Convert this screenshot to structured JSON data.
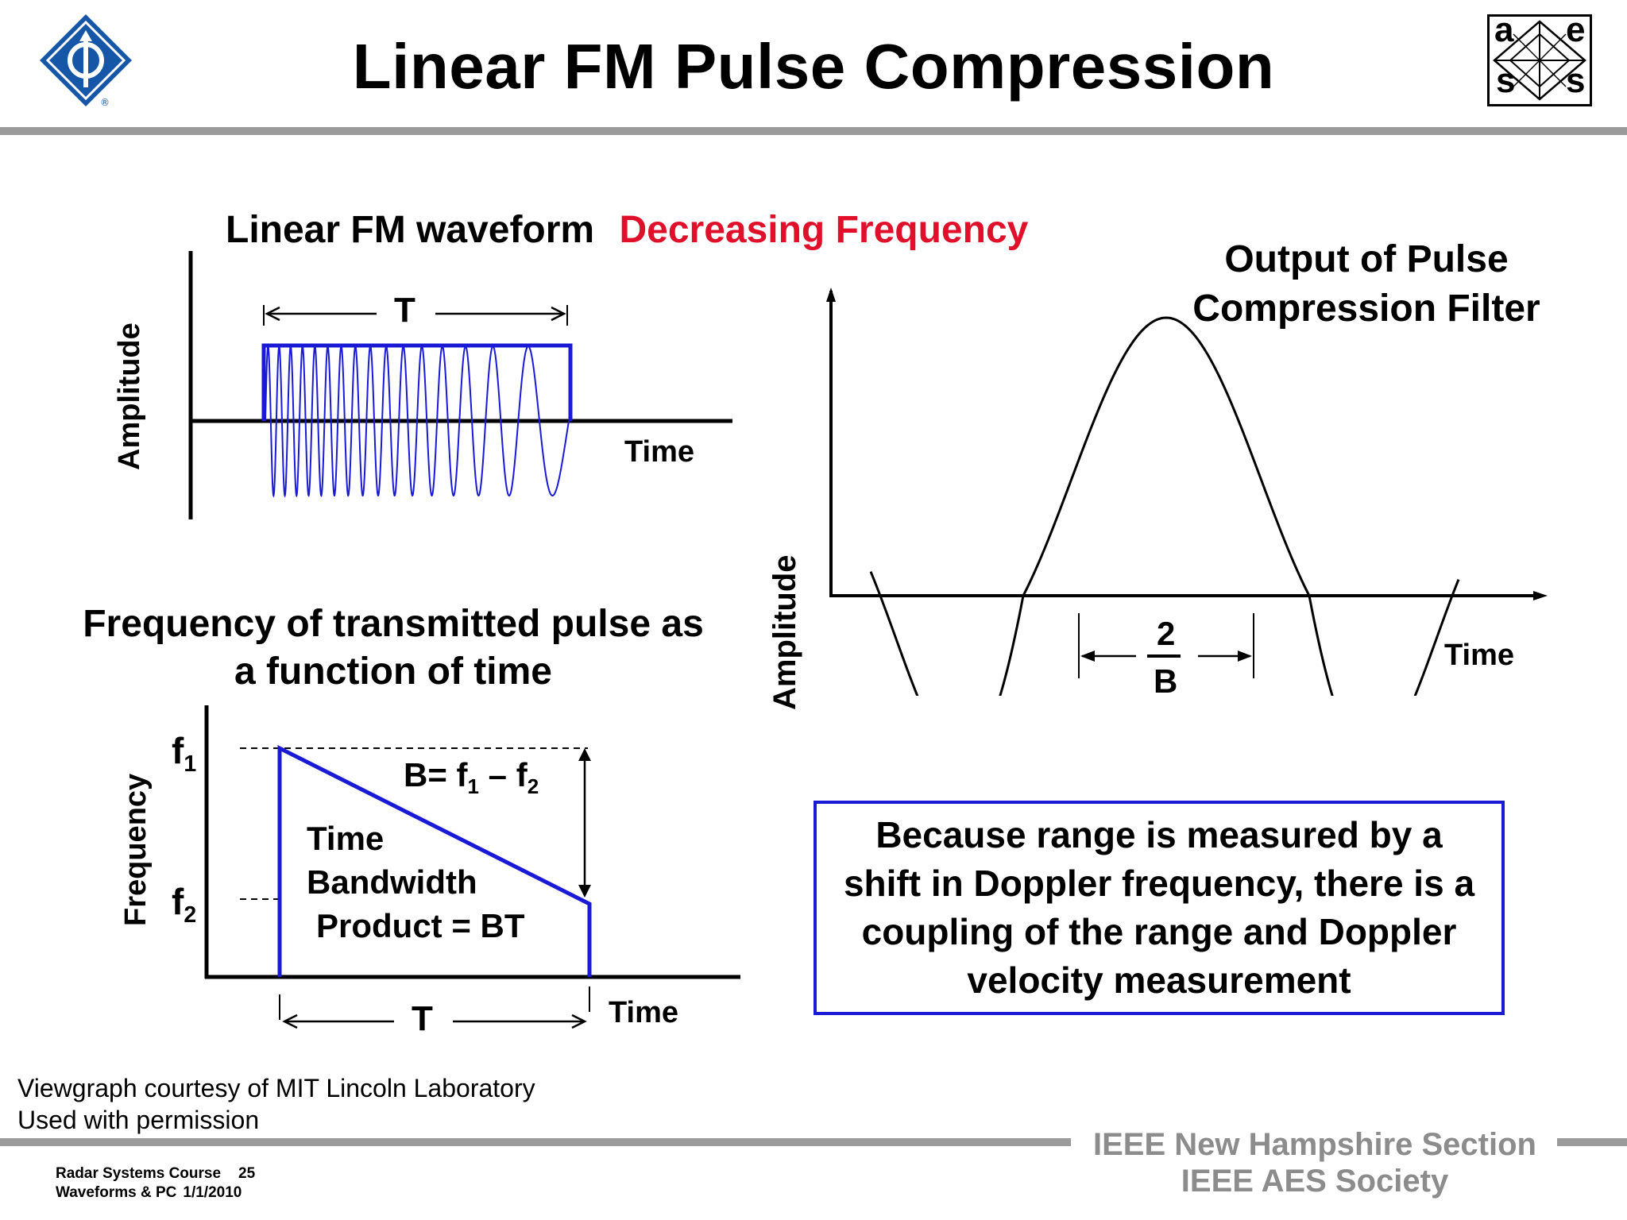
{
  "slide": {
    "title": "Linear FM Pulse Compression"
  },
  "waveform_panel": {
    "title": "Linear FM waveform",
    "title_highlight": "Decreasing Frequency",
    "y_label": "Amplitude",
    "x_label": "Time",
    "duration_label": "T"
  },
  "frequency_panel": {
    "title_line1": "Frequency of transmitted pulse as",
    "title_line2": "a function of time",
    "y_label": "Frequency",
    "x_label": "Time",
    "f1_main": "f",
    "f1_sub": "1",
    "f2_main": "f",
    "f2_sub": "2",
    "bandwidth_prefix": "B= f",
    "bandwidth_sub1": "1",
    "bandwidth_mid": " – f",
    "bandwidth_sub2": "2",
    "tbp_line1": "Time",
    "tbp_line2": "Bandwidth",
    "tbp_line3": "Product = BT",
    "duration_label": "T"
  },
  "output_panel": {
    "title_line1": "Output of Pulse",
    "title_line2": "Compression Filter",
    "y_label": "Amplitude",
    "x_label": "Time",
    "width_numerator": "2",
    "width_denominator": "B"
  },
  "note": "Because range is measured by a shift in Doppler frequency, there is a coupling of the range and Doppler velocity measurement",
  "credit_line1": "Viewgraph courtesy of MIT Lincoln Laboratory",
  "credit_line2": "Used with permission",
  "footer": {
    "course": "Radar Systems Course",
    "page": "25",
    "section": "Waveforms & PC",
    "date": "1/1/2010",
    "org_line1": "IEEE New Hampshire Section",
    "org_line2": "IEEE AES Society"
  },
  "logos": {
    "ieee_icon": "ieee-diamond-logo",
    "aes_icon": "aess-logo",
    "aes_letters": [
      "a",
      "e",
      "s",
      "s"
    ]
  },
  "colors": {
    "pulse_blue": "#1a1ad6",
    "highlight_red": "#e0102a",
    "rule_gray": "#9a9a9a",
    "footer_gray": "#8c8c8c"
  }
}
